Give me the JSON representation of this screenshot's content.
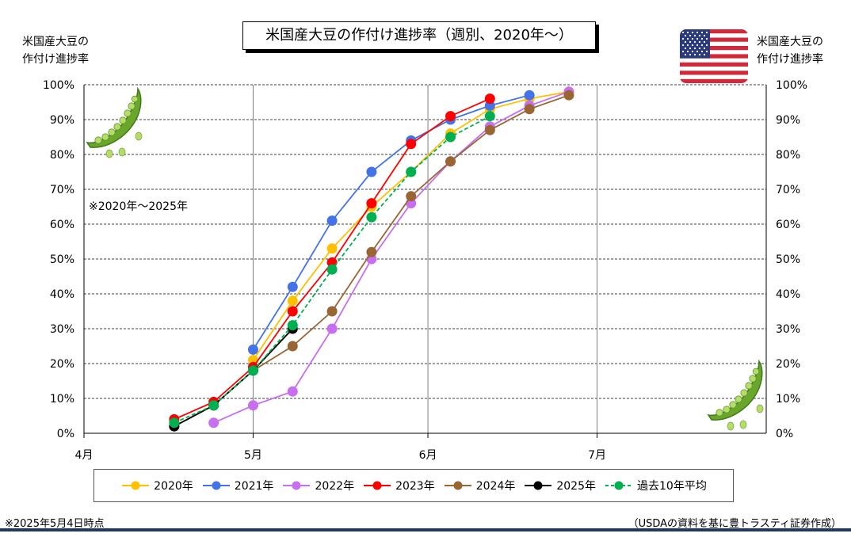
{
  "title": "米国産大豆の作付け進捗率（週別、2020年～）",
  "left_axis_title": [
    "米国産大豆の",
    "作付け進捗率"
  ],
  "right_axis_title": [
    "米国産大豆の",
    "作付け進捗率"
  ],
  "range_note": "※2020年～2025年",
  "footer_left": "※2025年5月4日時点",
  "footer_right": "（USDAの資料を基に豊トラスティ証券作成）",
  "icons": [
    "us-flag-icon",
    "pea-pod-icon"
  ],
  "chart_data": {
    "type": "line",
    "x_tick_labels": [
      "4月",
      "5月",
      "6月",
      "7月"
    ],
    "x_ticks_day_of_year": [
      91,
      121,
      152,
      182
    ],
    "xlim": [
      91,
      212
    ],
    "ylim": [
      0,
      100
    ],
    "y_tick_labels": [
      "0%",
      "10%",
      "20%",
      "30%",
      "40%",
      "50%",
      "60%",
      "70%",
      "80%",
      "90%",
      "100%"
    ],
    "grid": true,
    "legend_position": "bottom",
    "series": [
      {
        "name": "2020年",
        "color": "#ffc000",
        "dashed": false,
        "x": [
          121,
          128,
          135,
          142,
          149,
          156,
          163,
          170,
          177
        ],
        "y": [
          21,
          38,
          53,
          65,
          75,
          86,
          93,
          96,
          98
        ]
      },
      {
        "name": "2021年",
        "color": "#4472e8",
        "dashed": false,
        "x": [
          121,
          128,
          135,
          142,
          149,
          156,
          163,
          170
        ],
        "y": [
          24,
          42,
          61,
          75,
          84,
          90,
          94,
          97
        ]
      },
      {
        "name": "2022年",
        "color": "#c86ef0",
        "dashed": false,
        "x": [
          114,
          121,
          128,
          135,
          142,
          149,
          156,
          163,
          170,
          177
        ],
        "y": [
          3,
          8,
          12,
          30,
          50,
          66,
          78,
          88,
          94,
          98
        ]
      },
      {
        "name": "2023年",
        "color": "#ff0000",
        "dashed": false,
        "x": [
          107,
          114,
          121,
          128,
          135,
          142,
          149,
          156,
          163
        ],
        "y": [
          4,
          9,
          19,
          35,
          49,
          66,
          83,
          91,
          96
        ]
      },
      {
        "name": "2024年",
        "color": "#996633",
        "dashed": false,
        "x": [
          107,
          114,
          121,
          128,
          135,
          142,
          149,
          156,
          163,
          170,
          177
        ],
        "y": [
          2,
          8,
          18,
          25,
          35,
          52,
          68,
          78,
          87,
          93,
          97
        ]
      },
      {
        "name": "2025年",
        "color": "#000000",
        "dashed": false,
        "x": [
          107,
          114,
          121,
          128
        ],
        "y": [
          2,
          8,
          18,
          30
        ]
      },
      {
        "name": "過去10年平均",
        "color": "#00b050",
        "dashed": true,
        "x": [
          107,
          114,
          121,
          128,
          135,
          142,
          149,
          156,
          163
        ],
        "y": [
          3,
          8,
          18,
          31,
          47,
          62,
          75,
          85,
          91
        ]
      }
    ]
  }
}
